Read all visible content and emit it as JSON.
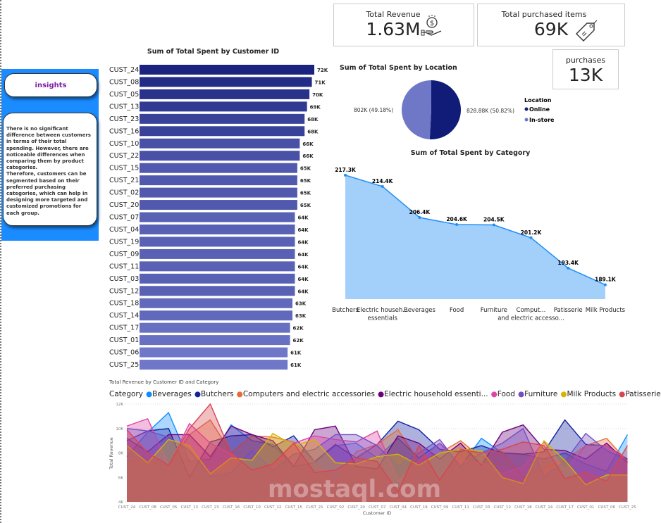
{
  "insights": {
    "title": "insights",
    "text": "There is no significant difference between customers in terms of their total spending. However, there are noticeable differences when comparing them by product categories.\n Therefore, customers can be segmented based on their preferred purchasing categories, which can help in designing more targeted and customized promotions for each group."
  },
  "cards": {
    "revenue": {
      "label": "Total Revenue",
      "value": "1.63M",
      "icon": "money-hand-icon"
    },
    "items": {
      "label": "Total purchased items",
      "value": "69K",
      "icon": "price-tag-icon"
    },
    "purchases": {
      "label": "purchases",
      "value": "13K"
    }
  },
  "watermark": "mostaql.com",
  "chart_data": [
    {
      "type": "bar",
      "orientation": "horizontal",
      "title": "Sum of Total Spent by Customer ID",
      "categories": [
        "CUST_24",
        "CUST_08",
        "CUST_05",
        "CUST_13",
        "CUST_23",
        "CUST_16",
        "CUST_10",
        "CUST_22",
        "CUST_15",
        "CUST_21",
        "CUST_02",
        "CUST_20",
        "CUST_07",
        "CUST_04",
        "CUST_19",
        "CUST_09",
        "CUST_11",
        "CUST_03",
        "CUST_12",
        "CUST_18",
        "CUST_14",
        "CUST_17",
        "CUST_01",
        "CUST_06",
        "CUST_25"
      ],
      "values": [
        72,
        71,
        70,
        69,
        68,
        68,
        66,
        66,
        65,
        65,
        65,
        65,
        64,
        64,
        64,
        64,
        64,
        64,
        64,
        63,
        63,
        62,
        62,
        61,
        61
      ],
      "labels": [
        "72K",
        "71K",
        "70K",
        "69K",
        "68K",
        "68K",
        "66K",
        "66K",
        "65K",
        "65K",
        "65K",
        "65K",
        "64K",
        "64K",
        "64K",
        "64K",
        "64K",
        "64K",
        "64K",
        "63K",
        "63K",
        "62K",
        "62K",
        "61K",
        "61K"
      ],
      "colors": {
        "high": "#1a237e",
        "low": "#6f78c8"
      }
    },
    {
      "type": "pie",
      "title": "Sum of Total Spent by Location",
      "legend_title": "Location",
      "slices": [
        {
          "name": "Online",
          "value": 828.88,
          "label": "828.88K (50.82%)",
          "color": "#101c78"
        },
        {
          "name": "In-store",
          "value": 802,
          "label": "802K (49.18%)",
          "color": "#6f78c6"
        }
      ],
      "legend": "right"
    },
    {
      "type": "area",
      "title": "Sum of Total Spent by Category",
      "categories": [
        "Butchers",
        "Electric househ... essentials",
        "Beverages",
        "Food",
        "Furniture",
        "Comput... and electric accesso...",
        "Patisserie",
        "Milk Products"
      ],
      "values": [
        217.3,
        214.4,
        206.4,
        204.6,
        204.5,
        201.2,
        193.4,
        189.1
      ],
      "labels": [
        "217.3K",
        "214.4K",
        "206.4K",
        "204.6K",
        "204.5K",
        "201.2K",
        "193.4K",
        "189.1K"
      ],
      "ylim": [
        185.4,
        218
      ],
      "colors": {
        "fill": "#a3cffb",
        "line": "#1e8ff5"
      }
    },
    {
      "type": "area",
      "title": "Total Revenue by Customer ID and Category",
      "xlabel": "Customer ID",
      "ylabel": "Total Revenue",
      "legend_title": "Category",
      "legend": "top",
      "ylim": [
        4,
        12
      ],
      "yticks": [
        "4K",
        "6K",
        "8K",
        "10K",
        "12K"
      ],
      "categories": [
        "CUST_24",
        "CUST_08",
        "CUST_05",
        "CUST_13",
        "CUST_23",
        "CUST_16",
        "CUST_10",
        "CUST_22",
        "CUST_15",
        "CUST_21",
        "CUST_02",
        "CUST_20",
        "CUST_07",
        "CUST_04",
        "CUST_19",
        "CUST_09",
        "CUST_11",
        "CUST_03",
        "CUST_12",
        "CUST_18",
        "CUST_14",
        "CUST_17",
        "CUST_01",
        "CUST_06",
        "CUST_25"
      ],
      "series": [
        {
          "name": "Beverages",
          "color": "#118DFF",
          "values": [
            7.7,
            9.7,
            11.3,
            7.3,
            7.5,
            10.3,
            9.0,
            8.7,
            6.9,
            7.2,
            8.6,
            8.8,
            7.6,
            9.2,
            7.6,
            8.8,
            6.9,
            9.2,
            8.0,
            7.9,
            7.5,
            8.0,
            7.1,
            6.5,
            9.5
          ]
        },
        {
          "name": "Butchers",
          "color": "#12239E",
          "values": [
            9.0,
            9.8,
            10.0,
            6.0,
            8.9,
            9.4,
            9.5,
            8.5,
            9.4,
            7.3,
            8.7,
            7.6,
            8.7,
            10.6,
            9.9,
            8.3,
            8.1,
            8.6,
            8.0,
            7.9,
            8.1,
            10.7,
            8.7,
            8.6,
            7.5
          ]
        },
        {
          "name": "Computers and electric accessories",
          "color": "#E66C37",
          "values": [
            7.3,
            7.4,
            6.9,
            9.5,
            10.7,
            8.0,
            9.4,
            9.3,
            8.9,
            7.3,
            5.4,
            8.1,
            8.7,
            9.9,
            7.3,
            8.0,
            9.0,
            7.6,
            8.1,
            6.0,
            6.8,
            7.4,
            8.6,
            9.2,
            7.3
          ]
        },
        {
          "name": "Electric household essenti...",
          "color": "#6B007B",
          "values": [
            9.2,
            8.1,
            9.5,
            9.5,
            7.7,
            10.2,
            9.5,
            9.0,
            6.9,
            9.9,
            10.2,
            6.9,
            6.7,
            9.4,
            8.8,
            7.5,
            8.8,
            7.0,
            9.7,
            10.3,
            8.3,
            8.2,
            7.5,
            8.8,
            7.2
          ]
        },
        {
          "name": "Food",
          "color": "#E044A7",
          "values": [
            10.2,
            10.8,
            7.0,
            10.4,
            8.8,
            7.9,
            6.6,
            7.1,
            8.8,
            9.4,
            9.1,
            8.9,
            9.8,
            5.7,
            7.3,
            8.8,
            7.4,
            7.2,
            6.3,
            6.9,
            8.9,
            6.6,
            8.6,
            8.6,
            7.4
          ]
        },
        {
          "name": "Furniture",
          "color": "#744EC2",
          "values": [
            10.0,
            9.8,
            9.3,
            8.2,
            6.1,
            6.4,
            8.2,
            6.6,
            7.9,
            8.3,
            9.5,
            9.5,
            8.6,
            6.9,
            8.0,
            9.1,
            6.9,
            8.0,
            8.8,
            10.0,
            6.1,
            7.3,
            9.6,
            8.2,
            7.4
          ]
        },
        {
          "name": "Milk Products",
          "color": "#D9B300",
          "values": [
            8.6,
            7.2,
            9.1,
            8.6,
            6.3,
            7.6,
            7.4,
            9.6,
            8.6,
            9.1,
            7.2,
            7.1,
            7.7,
            7.9,
            7.0,
            8.0,
            8.3,
            8.2,
            6.0,
            5.5,
            9.0,
            7.4,
            5.4,
            6.2,
            6.2
          ]
        },
        {
          "name": "Patisserie",
          "color": "#D64550",
          "values": [
            9.9,
            8.0,
            7.0,
            10.0,
            12.0,
            8.0,
            6.6,
            7.1,
            8.8,
            6.4,
            6.6,
            7.6,
            7.3,
            4.8,
            8.6,
            5.8,
            8.3,
            8.0,
            8.3,
            8.9,
            8.6,
            5.9,
            6.4,
            5.7,
            8.6
          ]
        }
      ]
    }
  ]
}
